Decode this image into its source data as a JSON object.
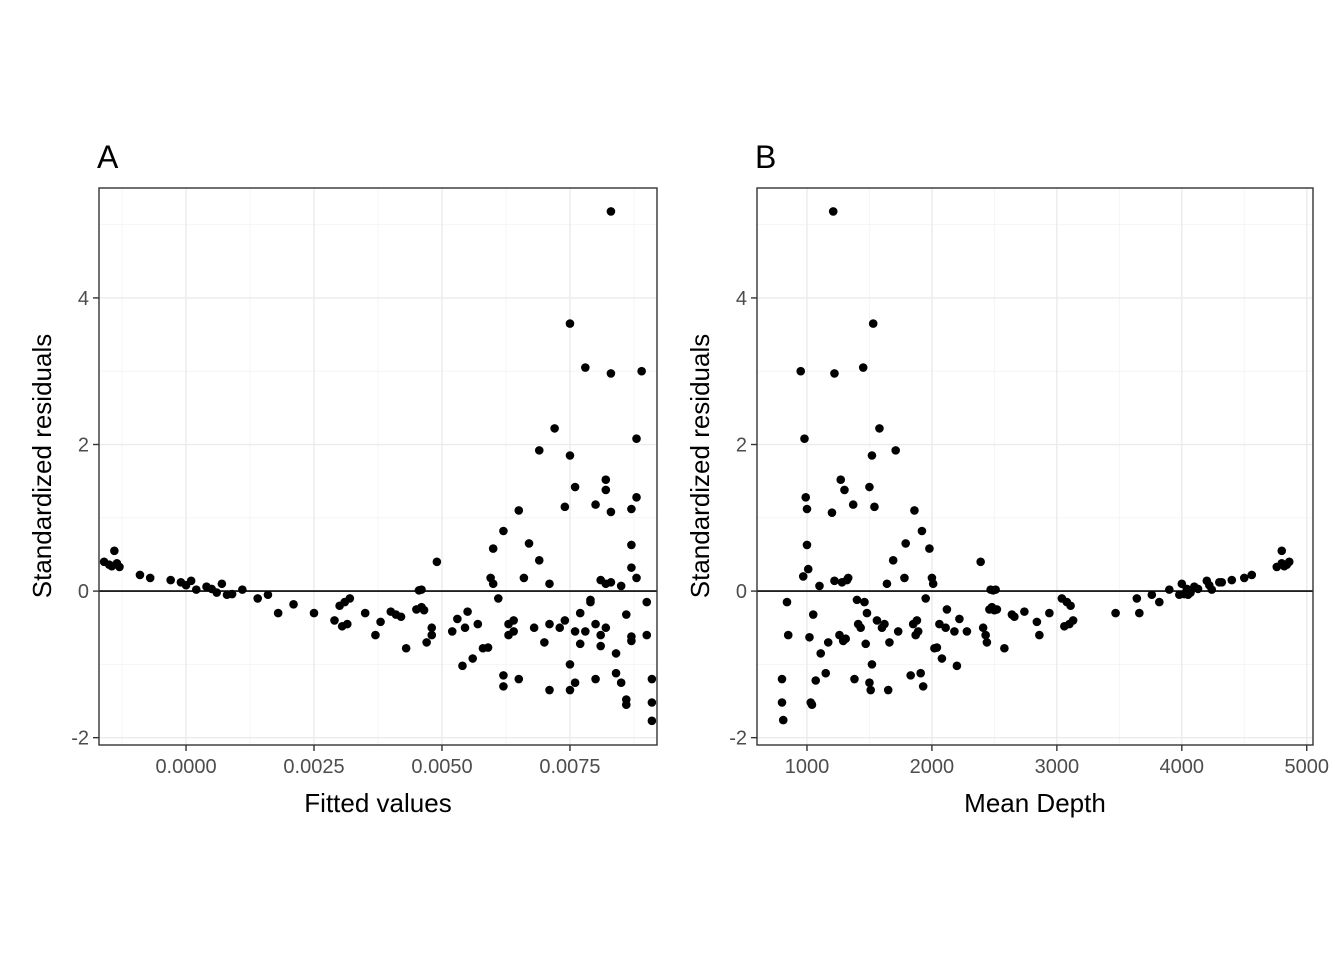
{
  "chart_data": [
    {
      "type": "scatter",
      "tag": "A",
      "xlabel": "Fitted values",
      "ylabel": "Standardized residuals",
      "xlim": [
        -0.0017,
        0.0092
      ],
      "ylim": [
        -2.1,
        5.5
      ],
      "x_ticks": [
        0.0,
        0.0025,
        0.005,
        0.0075
      ],
      "x_tick_labels": [
        "0.0000",
        "0.0025",
        "0.0050",
        "0.0075"
      ],
      "y_ticks": [
        -2,
        0,
        2,
        4
      ],
      "y_tick_labels": [
        "-2",
        "0",
        "2",
        "4"
      ],
      "hline": 0,
      "grid": true,
      "points": [
        [
          -0.0016,
          0.4
        ],
        [
          -0.0015,
          0.36
        ],
        [
          -0.00145,
          0.34
        ],
        [
          -0.0014,
          0.55
        ],
        [
          -0.00135,
          0.38
        ],
        [
          -0.0013,
          0.33
        ],
        [
          -0.0009,
          0.22
        ],
        [
          -0.0007,
          0.18
        ],
        [
          -0.0003,
          0.15
        ],
        [
          -0.0001,
          0.12
        ],
        [
          0.0,
          0.08
        ],
        [
          0.0001,
          0.14
        ],
        [
          0.0002,
          0.02
        ],
        [
          0.0004,
          0.06
        ],
        [
          0.0005,
          0.03
        ],
        [
          0.0006,
          -0.02
        ],
        [
          0.0007,
          0.1
        ],
        [
          0.0008,
          -0.05
        ],
        [
          0.0009,
          -0.04
        ],
        [
          0.0011,
          0.02
        ],
        [
          0.0014,
          -0.1
        ],
        [
          0.0016,
          -0.05
        ],
        [
          0.0018,
          -0.3
        ],
        [
          0.0021,
          -0.18
        ],
        [
          0.0025,
          -0.3
        ],
        [
          0.0029,
          -0.4
        ],
        [
          0.003,
          -0.2
        ],
        [
          0.00305,
          -0.48
        ],
        [
          0.0031,
          -0.15
        ],
        [
          0.00315,
          -0.45
        ],
        [
          0.0032,
          -0.1
        ],
        [
          0.0035,
          -0.3
        ],
        [
          0.0037,
          -0.6
        ],
        [
          0.0038,
          -0.42
        ],
        [
          0.004,
          -0.28
        ],
        [
          0.0041,
          -0.32
        ],
        [
          0.0042,
          -0.35
        ],
        [
          0.0043,
          -0.78
        ],
        [
          0.0045,
          -0.25
        ],
        [
          0.00455,
          0.01
        ],
        [
          0.0046,
          0.02
        ],
        [
          0.0046,
          -0.22
        ],
        [
          0.00465,
          -0.26
        ],
        [
          0.0047,
          -0.7
        ],
        [
          0.0048,
          -0.6
        ],
        [
          0.0048,
          -0.5
        ],
        [
          0.0049,
          0.4
        ],
        [
          0.0052,
          -0.55
        ],
        [
          0.0053,
          -0.38
        ],
        [
          0.0054,
          -1.02
        ],
        [
          0.00545,
          -0.5
        ],
        [
          0.0055,
          -0.28
        ],
        [
          0.0056,
          -0.92
        ],
        [
          0.0057,
          -0.45
        ],
        [
          0.0058,
          -0.78
        ],
        [
          0.0059,
          -0.77
        ],
        [
          0.00595,
          0.18
        ],
        [
          0.006,
          0.1
        ],
        [
          0.006,
          0.58
        ],
        [
          0.0061,
          -0.1
        ],
        [
          0.0062,
          0.82
        ],
        [
          0.0062,
          -1.15
        ],
        [
          0.0062,
          -1.3
        ],
        [
          0.0063,
          -0.45
        ],
        [
          0.0063,
          -0.6
        ],
        [
          0.0064,
          -0.55
        ],
        [
          0.0064,
          -0.4
        ],
        [
          0.0065,
          -1.2
        ],
        [
          0.0065,
          1.1
        ],
        [
          0.0066,
          0.18
        ],
        [
          0.0067,
          0.65
        ],
        [
          0.0068,
          -0.5
        ],
        [
          0.0069,
          1.92
        ],
        [
          0.0069,
          0.42
        ],
        [
          0.007,
          -0.7
        ],
        [
          0.0071,
          0.1
        ],
        [
          0.0071,
          -1.35
        ],
        [
          0.0071,
          -0.45
        ],
        [
          0.0072,
          2.22
        ],
        [
          0.0073,
          -0.5
        ],
        [
          0.0074,
          -0.4
        ],
        [
          0.0074,
          1.15
        ],
        [
          0.0075,
          1.85
        ],
        [
          0.0075,
          3.65
        ],
        [
          0.0075,
          -1.35
        ],
        [
          0.0075,
          -1.0
        ],
        [
          0.0076,
          1.42
        ],
        [
          0.0076,
          -1.25
        ],
        [
          0.0076,
          -0.55
        ],
        [
          0.0077,
          -0.3
        ],
        [
          0.0077,
          -0.72
        ],
        [
          0.0078,
          3.05
        ],
        [
          0.0078,
          -0.55
        ],
        [
          0.0079,
          -0.15
        ],
        [
          0.0079,
          -0.12
        ],
        [
          0.008,
          1.18
        ],
        [
          0.008,
          -1.2
        ],
        [
          0.008,
          -0.45
        ],
        [
          0.0081,
          0.15
        ],
        [
          0.0081,
          -0.75
        ],
        [
          0.0081,
          -0.6
        ],
        [
          0.0082,
          1.38
        ],
        [
          0.0082,
          1.52
        ],
        [
          0.0082,
          -0.5
        ],
        [
          0.0082,
          0.1
        ],
        [
          0.0083,
          5.18
        ],
        [
          0.0083,
          2.97
        ],
        [
          0.0083,
          1.08
        ],
        [
          0.0083,
          0.12
        ],
        [
          0.0084,
          -1.12
        ],
        [
          0.0084,
          -0.85
        ],
        [
          0.0085,
          0.07
        ],
        [
          0.0085,
          -1.25
        ],
        [
          0.0086,
          -0.32
        ],
        [
          0.0086,
          -1.48
        ],
        [
          0.0086,
          -1.55
        ],
        [
          0.0087,
          0.32
        ],
        [
          0.0087,
          1.12
        ],
        [
          0.0087,
          0.63
        ],
        [
          0.0087,
          -0.62
        ],
        [
          0.0087,
          -0.68
        ],
        [
          0.0088,
          2.08
        ],
        [
          0.0088,
          1.28
        ],
        [
          0.0088,
          0.18
        ],
        [
          0.0089,
          3.0
        ],
        [
          0.009,
          -0.15
        ],
        [
          0.009,
          -0.6
        ],
        [
          0.0091,
          -1.2
        ],
        [
          0.0091,
          -1.52
        ],
        [
          0.0091,
          -1.77
        ]
      ]
    },
    {
      "type": "scatter",
      "tag": "B",
      "xlabel": "Mean Depth",
      "ylabel": "Standardized residuals",
      "xlim": [
        600,
        5050
      ],
      "ylim": [
        -2.1,
        5.5
      ],
      "x_ticks": [
        1000,
        2000,
        3000,
        4000,
        5000
      ],
      "x_tick_labels": [
        "1000",
        "2000",
        "3000",
        "4000",
        "5000"
      ],
      "y_ticks": [
        -2,
        0,
        2,
        4
      ],
      "y_tick_labels": [
        "-2",
        "0",
        "2",
        "4"
      ],
      "hline": 0,
      "grid": true,
      "points": [
        [
          800,
          -1.2
        ],
        [
          800,
          -1.52
        ],
        [
          810,
          -1.76
        ],
        [
          840,
          -0.15
        ],
        [
          850,
          -0.6
        ],
        [
          950,
          3.0
        ],
        [
          970,
          0.2
        ],
        [
          980,
          2.08
        ],
        [
          990,
          1.28
        ],
        [
          1000,
          0.63
        ],
        [
          1000,
          1.12
        ],
        [
          1010,
          0.3
        ],
        [
          1020,
          -0.63
        ],
        [
          1030,
          -1.52
        ],
        [
          1040,
          -1.55
        ],
        [
          1050,
          -0.32
        ],
        [
          1070,
          -1.22
        ],
        [
          1100,
          0.07
        ],
        [
          1110,
          -0.85
        ],
        [
          1150,
          -1.12
        ],
        [
          1170,
          -0.7
        ],
        [
          1200,
          1.07
        ],
        [
          1210,
          5.18
        ],
        [
          1220,
          0.14
        ],
        [
          1220,
          2.97
        ],
        [
          1260,
          -0.6
        ],
        [
          1270,
          1.52
        ],
        [
          1280,
          0.12
        ],
        [
          1290,
          -0.68
        ],
        [
          1300,
          1.38
        ],
        [
          1310,
          -0.65
        ],
        [
          1320,
          0.15
        ],
        [
          1330,
          0.18
        ],
        [
          1370,
          1.18
        ],
        [
          1380,
          -1.2
        ],
        [
          1400,
          -0.12
        ],
        [
          1410,
          -0.45
        ],
        [
          1430,
          -0.5
        ],
        [
          1450,
          3.05
        ],
        [
          1460,
          -0.15
        ],
        [
          1470,
          -0.72
        ],
        [
          1480,
          -0.3
        ],
        [
          1500,
          -1.25
        ],
        [
          1500,
          1.42
        ],
        [
          1510,
          -1.35
        ],
        [
          1520,
          -1.0
        ],
        [
          1520,
          1.85
        ],
        [
          1530,
          3.65
        ],
        [
          1540,
          1.15
        ],
        [
          1560,
          -0.4
        ],
        [
          1580,
          2.22
        ],
        [
          1600,
          -0.5
        ],
        [
          1620,
          -0.45
        ],
        [
          1640,
          0.1
        ],
        [
          1650,
          -1.35
        ],
        [
          1660,
          -0.7
        ],
        [
          1690,
          0.42
        ],
        [
          1710,
          1.92
        ],
        [
          1730,
          -0.55
        ],
        [
          1780,
          0.18
        ],
        [
          1790,
          0.65
        ],
        [
          1830,
          -1.15
        ],
        [
          1850,
          -0.45
        ],
        [
          1860,
          1.1
        ],
        [
          1870,
          -0.6
        ],
        [
          1880,
          -0.4
        ],
        [
          1890,
          -0.55
        ],
        [
          1910,
          -1.12
        ],
        [
          1920,
          0.82
        ],
        [
          1930,
          -1.3
        ],
        [
          1950,
          -0.1
        ],
        [
          1980,
          0.58
        ],
        [
          2000,
          0.18
        ],
        [
          2010,
          0.1
        ],
        [
          2020,
          -0.78
        ],
        [
          2040,
          -0.77
        ],
        [
          2060,
          -0.45
        ],
        [
          2080,
          -0.92
        ],
        [
          2110,
          -0.5
        ],
        [
          2120,
          -0.25
        ],
        [
          2180,
          -0.55
        ],
        [
          2200,
          -1.02
        ],
        [
          2220,
          -0.38
        ],
        [
          2280,
          -0.55
        ],
        [
          2390,
          0.4
        ],
        [
          2410,
          -0.5
        ],
        [
          2430,
          -0.6
        ],
        [
          2440,
          -0.7
        ],
        [
          2460,
          -0.25
        ],
        [
          2470,
          0.02
        ],
        [
          2480,
          -0.22
        ],
        [
          2490,
          0.01
        ],
        [
          2500,
          -0.26
        ],
        [
          2510,
          0.02
        ],
        [
          2520,
          -0.25
        ],
        [
          2580,
          -0.78
        ],
        [
          2640,
          -0.32
        ],
        [
          2660,
          -0.35
        ],
        [
          2740,
          -0.28
        ],
        [
          2840,
          -0.42
        ],
        [
          2860,
          -0.6
        ],
        [
          2940,
          -0.3
        ],
        [
          3040,
          -0.1
        ],
        [
          3060,
          -0.48
        ],
        [
          3080,
          -0.15
        ],
        [
          3100,
          -0.45
        ],
        [
          3110,
          -0.2
        ],
        [
          3130,
          -0.4
        ],
        [
          3470,
          -0.3
        ],
        [
          3640,
          -0.1
        ],
        [
          3660,
          -0.3
        ],
        [
          3760,
          -0.05
        ],
        [
          3820,
          -0.15
        ],
        [
          3900,
          0.02
        ],
        [
          3980,
          -0.05
        ],
        [
          4000,
          0.1
        ],
        [
          4020,
          -0.04
        ],
        [
          4040,
          0.03
        ],
        [
          4050,
          -0.05
        ],
        [
          4070,
          -0.02
        ],
        [
          4100,
          0.06
        ],
        [
          4130,
          0.03
        ],
        [
          4200,
          0.14
        ],
        [
          4220,
          0.08
        ],
        [
          4240,
          0.02
        ],
        [
          4300,
          0.12
        ],
        [
          4320,
          0.12
        ],
        [
          4400,
          0.15
        ],
        [
          4500,
          0.18
        ],
        [
          4560,
          0.22
        ],
        [
          4760,
          0.33
        ],
        [
          4800,
          0.38
        ],
        [
          4800,
          0.55
        ],
        [
          4820,
          0.34
        ],
        [
          4840,
          0.36
        ],
        [
          4860,
          0.4
        ]
      ]
    }
  ]
}
